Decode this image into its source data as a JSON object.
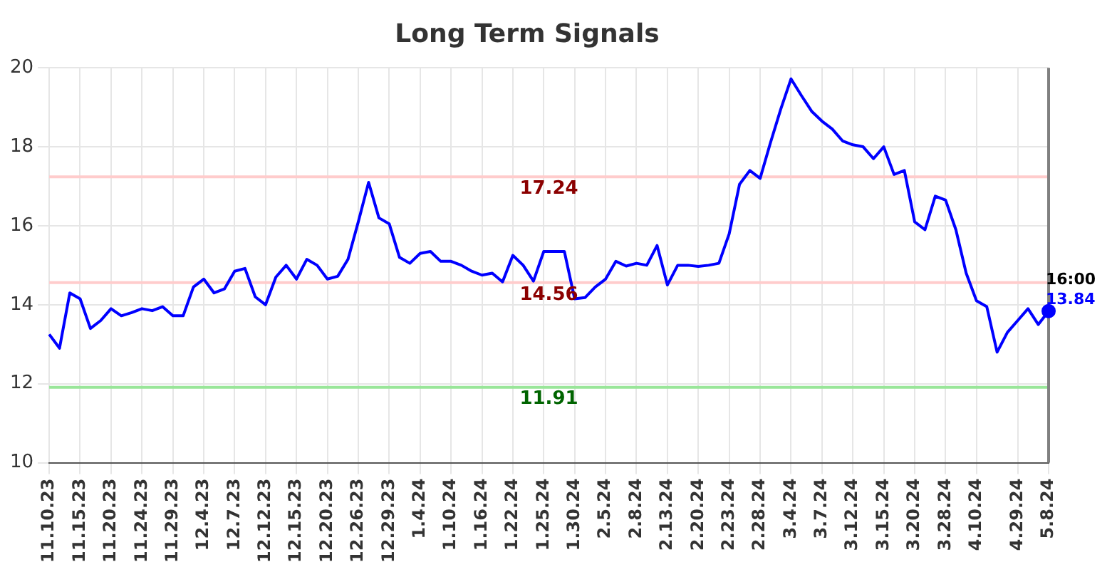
{
  "chart_data": {
    "type": "line",
    "title": "Long Term Signals",
    "categories": [
      "11.10.23",
      null,
      null,
      "11.15.23",
      null,
      null,
      "11.20.23",
      null,
      null,
      "11.24.23",
      null,
      null,
      "11.29.23",
      null,
      null,
      "12.4.23",
      null,
      null,
      "12.7.23",
      null,
      null,
      "12.12.23",
      null,
      null,
      "12.15.23",
      null,
      null,
      "12.20.23",
      null,
      null,
      "12.26.23",
      null,
      null,
      "12.29.23",
      null,
      null,
      "1.4.24",
      null,
      null,
      "1.10.24",
      null,
      null,
      "1.16.24",
      null,
      null,
      "1.22.24",
      null,
      null,
      "1.25.24",
      null,
      null,
      "1.30.24",
      null,
      null,
      "2.5.24",
      null,
      null,
      "2.8.24",
      null,
      null,
      "2.13.24",
      null,
      null,
      "2.20.24",
      null,
      null,
      "2.23.24",
      null,
      null,
      "2.28.24",
      null,
      null,
      "3.4.24",
      null,
      null,
      "3.7.24",
      null,
      null,
      "3.12.24",
      null,
      null,
      "3.15.24",
      null,
      null,
      "3.20.24",
      null,
      null,
      "3.28.24",
      null,
      null,
      "4.10.24",
      null,
      null,
      null,
      "4.29.24",
      null,
      null,
      "5.8.24"
    ],
    "series": [
      {
        "color": "#0000ff",
        "values": [
          13.25,
          12.9,
          14.3,
          14.15,
          13.4,
          13.6,
          13.9,
          13.72,
          13.8,
          13.9,
          13.85,
          13.95,
          13.72,
          13.72,
          14.45,
          14.65,
          14.3,
          14.4,
          14.85,
          14.92,
          14.2,
          14.0,
          14.7,
          15.0,
          14.65,
          15.15,
          15.0,
          14.65,
          14.72,
          15.15,
          16.1,
          17.1,
          16.2,
          16.05,
          15.2,
          15.05,
          15.3,
          15.35,
          15.1,
          15.1,
          15.0,
          14.85,
          14.75,
          14.8,
          14.58,
          15.25,
          15.0,
          14.6,
          15.35,
          15.35,
          15.35,
          14.15,
          14.18,
          14.45,
          14.65,
          15.1,
          14.98,
          15.05,
          15.0,
          15.5,
          14.5,
          15.0,
          15.0,
          14.97,
          15.0,
          15.05,
          15.8,
          17.05,
          17.4,
          17.2,
          18.1,
          18.95,
          19.72,
          19.3,
          18.9,
          18.65,
          18.45,
          18.15,
          18.05,
          18.0,
          17.7,
          18.0,
          17.3,
          17.4,
          16.1,
          15.9,
          16.75,
          16.65,
          15.9,
          14.8,
          14.1,
          13.95,
          12.8,
          13.3,
          13.6,
          13.9,
          13.5,
          13.84
        ],
        "value_labels": [
          null,
          null,
          null,
          null,
          null,
          null,
          null,
          null,
          null,
          null,
          null,
          null,
          null,
          null,
          null,
          null,
          null,
          null,
          null,
          null,
          null,
          null,
          null,
          null,
          null,
          null,
          null,
          null,
          null,
          null,
          null,
          null,
          null,
          null,
          null,
          null,
          null,
          null,
          null,
          null,
          null,
          null,
          null,
          null,
          null,
          null,
          null,
          null,
          null,
          null,
          null,
          null,
          null,
          null,
          null,
          null,
          null,
          null,
          null,
          null,
          null,
          null,
          null,
          null,
          null,
          null,
          null,
          null,
          null,
          null,
          null,
          null,
          null,
          null,
          null,
          null,
          null,
          null,
          null,
          null,
          null,
          null,
          null,
          null,
          null,
          null,
          null,
          null,
          null,
          null,
          null,
          null,
          null,
          null,
          null,
          null,
          null,
          "13.84"
        ]
      }
    ],
    "ylim": [
      10,
      20
    ],
    "yticks": [
      10,
      12,
      14,
      16,
      18,
      20
    ],
    "grid": true,
    "legend": false,
    "marker": "none",
    "line_style": "solid",
    "ref_lines": [
      {
        "axis": "y",
        "value": 17.24,
        "label": "17.24",
        "color": "#ffcccc"
      },
      {
        "axis": "y",
        "value": 14.56,
        "label": "14.56",
        "color": "#ffcccc"
      },
      {
        "axis": "y",
        "value": 11.91,
        "label": "11.91",
        "color": "#99e699"
      },
      {
        "axis": "x",
        "value": "5.8.24",
        "label": null,
        "color": "#808080"
      }
    ],
    "annotations": [
      {
        "text": "16:00",
        "x": "5.8.24",
        "y": 13.84
      }
    ]
  }
}
